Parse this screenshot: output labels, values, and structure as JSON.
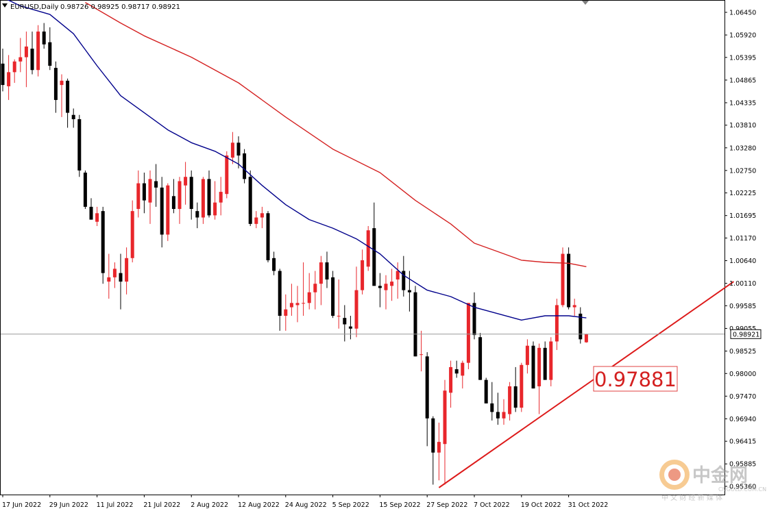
{
  "header": {
    "symbol_timeframe": "EURUSD,Daily",
    "ohlc": "0.98726 0.98925 0.98717 0.98921"
  },
  "current_price_label": "0.98921",
  "annotation_label": "0.97881",
  "watermark": {
    "name": "中金网",
    "subtitle": "中 文 财 经 新 媒 体",
    "url": "CNGOLD.COM.CN"
  },
  "colors": {
    "bull": "#e8262b",
    "bear": "#000000",
    "ma_fast": "#00008b",
    "ma_slow": "#d42020",
    "trendline": "#dd1a1a",
    "grid_frame": "#000000",
    "annotation_text": "#d42020"
  },
  "chart_data": {
    "type": "candlestick",
    "title": "EURUSD,Daily",
    "y_ticks": [
      "1.06450",
      "1.05920",
      "1.05395",
      "1.04865",
      "1.04335",
      "1.03810",
      "1.03280",
      "1.02750",
      "1.02225",
      "1.01695",
      "1.01170",
      "1.00640",
      "1.00110",
      "0.99585",
      "0.99055",
      "0.98525",
      "0.98000",
      "0.97470",
      "0.96940",
      "0.96415",
      "0.95885",
      "0.95360"
    ],
    "x_tick_labels": [
      "17 Jun 2022",
      "29 Jun 2022",
      "11 Jul 2022",
      "21 Jul 2022",
      "2 Aug 2022",
      "12 Aug 2022",
      "24 Aug 2022",
      "5 Sep 2022",
      "15 Sep 2022",
      "27 Sep 2022",
      "7 Oct 2022",
      "19 Oct 2022",
      "31 Oct 2022"
    ],
    "x_tick_positions": [
      0,
      8,
      16,
      24,
      32,
      40,
      48,
      56,
      64,
      72,
      80,
      88,
      96
    ],
    "ylim": [
      0.953,
      1.0668
    ],
    "ohlc": [
      [
        1.0525,
        1.056,
        1.046,
        1.0475
      ],
      [
        1.0472,
        1.0545,
        1.044,
        1.0505
      ],
      [
        1.0505,
        1.0535,
        1.048,
        1.053
      ],
      [
        1.053,
        1.0585,
        1.0505,
        1.054
      ],
      [
        1.054,
        1.06,
        1.047,
        1.0565
      ],
      [
        1.056,
        1.06,
        1.05,
        1.051
      ],
      [
        1.051,
        1.0615,
        1.0495,
        1.06
      ],
      [
        1.06,
        1.062,
        1.056,
        1.057
      ],
      [
        1.0575,
        1.061,
        1.051,
        1.052
      ],
      [
        1.0515,
        1.053,
        1.041,
        1.044
      ],
      [
        1.0475,
        1.05,
        1.04,
        1.0485
      ],
      [
        1.0485,
        1.049,
        1.0375,
        1.041
      ],
      [
        1.0405,
        1.042,
        1.0375,
        1.0395
      ],
      [
        1.0395,
        1.0405,
        1.026,
        1.0275
      ],
      [
        1.027,
        1.0275,
        1.0185,
        1.019
      ],
      [
        1.019,
        1.021,
        1.016,
        1.016
      ],
      [
        1.0155,
        1.019,
        1.0145,
        1.0175
      ],
      [
        1.018,
        1.019,
        1.001,
        1.0035
      ],
      [
        1.0015,
        1.008,
        0.9975,
        1.0025
      ],
      [
        1.0025,
        1.006,
        1.0,
        1.0045
      ],
      [
        1.0035,
        1.008,
        0.995,
        1.0015
      ],
      [
        1.0015,
        1.0095,
        0.9985,
        1.007
      ],
      [
        1.007,
        1.0205,
        1.006,
        1.018
      ],
      [
        1.0185,
        1.0275,
        1.0165,
        1.0245
      ],
      [
        1.0245,
        1.027,
        1.0175,
        1.0205
      ],
      [
        1.02,
        1.0275,
        1.015,
        1.0255
      ],
      [
        1.025,
        1.029,
        1.019,
        1.0235
      ],
      [
        1.0235,
        1.026,
        1.0095,
        1.0125
      ],
      [
        1.0125,
        1.0245,
        1.011,
        1.024
      ],
      [
        1.0215,
        1.0255,
        1.0175,
        1.0185
      ],
      [
        1.0185,
        1.026,
        1.015,
        1.025
      ],
      [
        1.024,
        1.0295,
        1.0195,
        1.026
      ],
      [
        1.026,
        1.0275,
        1.016,
        1.0185
      ],
      [
        1.018,
        1.02,
        1.014,
        1.0165
      ],
      [
        1.0165,
        1.026,
        1.015,
        1.0255
      ],
      [
        1.0255,
        1.0275,
        1.0165,
        1.017
      ],
      [
        1.017,
        1.025,
        1.016,
        1.02
      ],
      [
        1.02,
        1.026,
        1.017,
        1.0225
      ],
      [
        1.022,
        1.032,
        1.021,
        1.031
      ],
      [
        1.0305,
        1.0365,
        1.029,
        1.034
      ],
      [
        1.034,
        1.0355,
        1.028,
        1.031
      ],
      [
        1.0315,
        1.0325,
        1.0245,
        1.0255
      ],
      [
        1.026,
        1.0275,
        1.0145,
        1.015
      ],
      [
        1.015,
        1.018,
        1.014,
        1.0165
      ],
      [
        1.0165,
        1.019,
        1.014,
        1.0175
      ],
      [
        1.0175,
        1.018,
        1.006,
        1.0065
      ],
      [
        1.007,
        1.0085,
        1.003,
        1.004
      ],
      [
        1.004,
        1.0045,
        0.99,
        0.9935
      ],
      [
        0.9935,
        0.9985,
        0.99,
        0.995
      ],
      [
        0.9955,
        1.001,
        0.9935,
        0.9965
      ],
      [
        0.996,
        1.0005,
        0.992,
        0.9965
      ],
      [
        0.9965,
        1.006,
        0.9935,
        0.9965
      ],
      [
        0.9965,
        1.0035,
        0.995,
        0.999
      ],
      [
        0.999,
        1.004,
        0.995,
        1.001
      ],
      [
        1.001,
        1.0075,
        0.996,
        1.006
      ],
      [
        1.006,
        1.0085,
        1.0,
        1.002
      ],
      [
        1.0025,
        1.004,
        0.993,
        0.9935
      ],
      [
        0.9935,
        1.002,
        0.9905,
        0.9935
      ],
      [
        0.993,
        0.996,
        0.9875,
        0.9915
      ],
      [
        0.991,
        0.9935,
        0.988,
        0.9905
      ],
      [
        0.9905,
        1.005,
        0.9885,
        0.9995
      ],
      [
        0.9995,
        1.009,
        0.9985,
        1.0065
      ],
      [
        1.005,
        1.0145,
        1.004,
        1.0135
      ],
      [
        1.014,
        1.02,
        1.001,
        1.0005
      ],
      [
        1.0005,
        1.0035,
        0.9955,
        1.0
      ],
      [
        0.9995,
        1.003,
        0.995,
        1.001
      ],
      [
        1.0005,
        1.0045,
        0.997,
        1.0015
      ],
      [
        1.002,
        1.006,
        0.9975,
        1.004
      ],
      [
        1.004,
        1.0075,
        0.998,
        0.9995
      ],
      [
        0.9995,
        1.004,
        0.9945,
        0.999
      ],
      [
        0.999,
        1.0005,
        0.984,
        0.984
      ],
      [
        0.9845,
        0.99,
        0.9805,
        0.9845
      ],
      [
        0.984,
        0.985,
        0.963,
        0.9695
      ],
      [
        0.9695,
        0.97,
        0.954,
        0.9615
      ],
      [
        0.9615,
        0.9685,
        0.955,
        0.964
      ],
      [
        0.9635,
        0.9785,
        0.954,
        0.976
      ],
      [
        0.9755,
        0.983,
        0.972,
        0.9815
      ],
      [
        0.981,
        0.983,
        0.979,
        0.98
      ],
      [
        0.9795,
        0.983,
        0.9765,
        0.9825
      ],
      [
        0.9825,
        0.9965,
        0.981,
        0.9965
      ],
      [
        0.9965,
        0.999,
        0.988,
        0.989
      ],
      [
        0.9885,
        0.9895,
        0.9785,
        0.9785
      ],
      [
        0.9785,
        0.979,
        0.973,
        0.973
      ],
      [
        0.973,
        0.978,
        0.969,
        0.971
      ],
      [
        0.971,
        0.9755,
        0.968,
        0.9695
      ],
      [
        0.9695,
        0.974,
        0.968,
        0.971
      ],
      [
        0.9705,
        0.978,
        0.969,
        0.977
      ],
      [
        0.977,
        0.9815,
        0.971,
        0.972
      ],
      [
        0.972,
        0.9825,
        0.971,
        0.982
      ],
      [
        0.982,
        0.988,
        0.98,
        0.9865
      ],
      [
        0.9865,
        0.9875,
        0.9765,
        0.9765
      ],
      [
        0.977,
        0.987,
        0.9705,
        0.986
      ],
      [
        0.986,
        0.9875,
        0.979,
        0.9785
      ],
      [
        0.9785,
        0.9885,
        0.977,
        0.9875
      ],
      [
        0.9875,
        0.9975,
        0.9855,
        0.996
      ],
      [
        0.996,
        1.0095,
        0.9955,
        1.008
      ],
      [
        1.008,
        1.0095,
        0.995,
        0.9955
      ],
      [
        0.9955,
        0.9975,
        0.9935,
        0.996
      ],
      [
        0.994,
        0.9955,
        0.987,
        0.988
      ],
      [
        0.9873,
        0.9893,
        0.9872,
        0.9892
      ]
    ],
    "ma_fast": [
      [
        0,
        1.068
      ],
      [
        3,
        1.066
      ],
      [
        8,
        1.064
      ],
      [
        12,
        1.0595
      ],
      [
        16,
        1.052
      ],
      [
        20,
        1.045
      ],
      [
        24,
        1.041
      ],
      [
        28,
        1.037
      ],
      [
        32,
        1.034
      ],
      [
        36,
        1.032
      ],
      [
        40,
        1.029
      ],
      [
        44,
        1.024
      ],
      [
        48,
        1.0195
      ],
      [
        52,
        1.016
      ],
      [
        56,
        1.014
      ],
      [
        60,
        1.0115
      ],
      [
        64,
        1.008
      ],
      [
        68,
        1.003
      ],
      [
        72,
        0.9995
      ],
      [
        76,
        0.998
      ],
      [
        80,
        0.9955
      ],
      [
        84,
        0.994
      ],
      [
        88,
        0.9925
      ],
      [
        92,
        0.9935
      ],
      [
        96,
        0.9935
      ],
      [
        99,
        0.993
      ]
    ],
    "ma_slow": [
      [
        14,
        1.0668
      ],
      [
        20,
        1.062
      ],
      [
        24,
        1.059
      ],
      [
        32,
        1.054
      ],
      [
        40,
        1.048
      ],
      [
        48,
        1.04
      ],
      [
        56,
        1.0325
      ],
      [
        64,
        1.027
      ],
      [
        70,
        1.0205
      ],
      [
        76,
        1.015
      ],
      [
        80,
        1.0105
      ],
      [
        84,
        1.0085
      ],
      [
        88,
        1.0065
      ],
      [
        92,
        1.006
      ],
      [
        96,
        1.0058
      ],
      [
        99,
        1.005
      ]
    ],
    "trendline": [
      [
        74,
        0.9533
      ],
      [
        124,
        1.0015
      ]
    ],
    "current_price": 0.98921,
    "annotation_value": 0.97881
  }
}
